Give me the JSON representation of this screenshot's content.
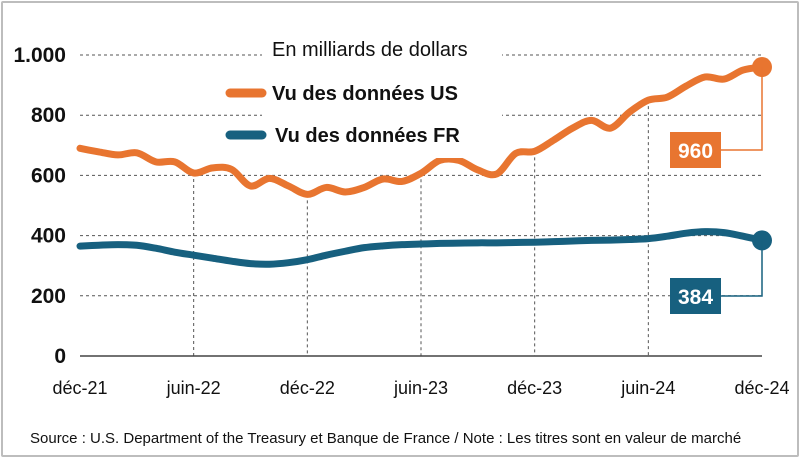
{
  "chart_data": {
    "type": "line",
    "unit_label": "En milliards de dollars",
    "x": [
      "déc-21",
      "jan-22",
      "fév-22",
      "mar-22",
      "avr-22",
      "mai-22",
      "juin-22",
      "juil-22",
      "août-22",
      "sep-22",
      "oct-22",
      "nov-22",
      "déc-22",
      "jan-23",
      "fév-23",
      "mar-23",
      "avr-23",
      "mai-23",
      "juin-23",
      "juil-23",
      "août-23",
      "sep-23",
      "oct-23",
      "nov-23",
      "déc-23",
      "jan-24",
      "fév-24",
      "mar-24",
      "avr-24",
      "mai-24",
      "juin-24",
      "juil-24",
      "août-24",
      "sep-24",
      "oct-24",
      "nov-24",
      "déc-24"
    ],
    "x_tick_labels": [
      "déc-21",
      "juin-22",
      "déc-22",
      "juin-23",
      "déc-23",
      "juin-24",
      "déc-24"
    ],
    "y_tick_labels": [
      "0",
      "200",
      "400",
      "600",
      "800",
      "1.000"
    ],
    "y_ticks": [
      0,
      200,
      400,
      600,
      800,
      1000
    ],
    "ylim": [
      0,
      1000
    ],
    "grid": "dotted",
    "legend_position": "top-center",
    "series": [
      {
        "name": "Vu des données US",
        "color": "#e87530",
        "end_label": "960",
        "values": [
          690,
          678,
          668,
          675,
          645,
          645,
          608,
          625,
          620,
          565,
          590,
          565,
          537,
          560,
          545,
          560,
          588,
          580,
          607,
          650,
          650,
          618,
          605,
          673,
          680,
          717,
          757,
          783,
          757,
          810,
          850,
          860,
          897,
          927,
          920,
          950,
          960
        ]
      },
      {
        "name": "Vu des données FR",
        "color": "#17607f",
        "end_label": "384",
        "values": [
          365,
          368,
          370,
          368,
          358,
          345,
          335,
          325,
          315,
          307,
          305,
          310,
          320,
          335,
          348,
          360,
          366,
          370,
          372,
          374,
          375,
          376,
          376,
          377,
          378,
          380,
          382,
          384,
          385,
          387,
          390,
          398,
          408,
          413,
          410,
          398,
          384
        ]
      }
    ]
  },
  "footer": "Source : U.S. Department of the Treasury et Banque de France / Note : Les titres sont en valeur de marché"
}
